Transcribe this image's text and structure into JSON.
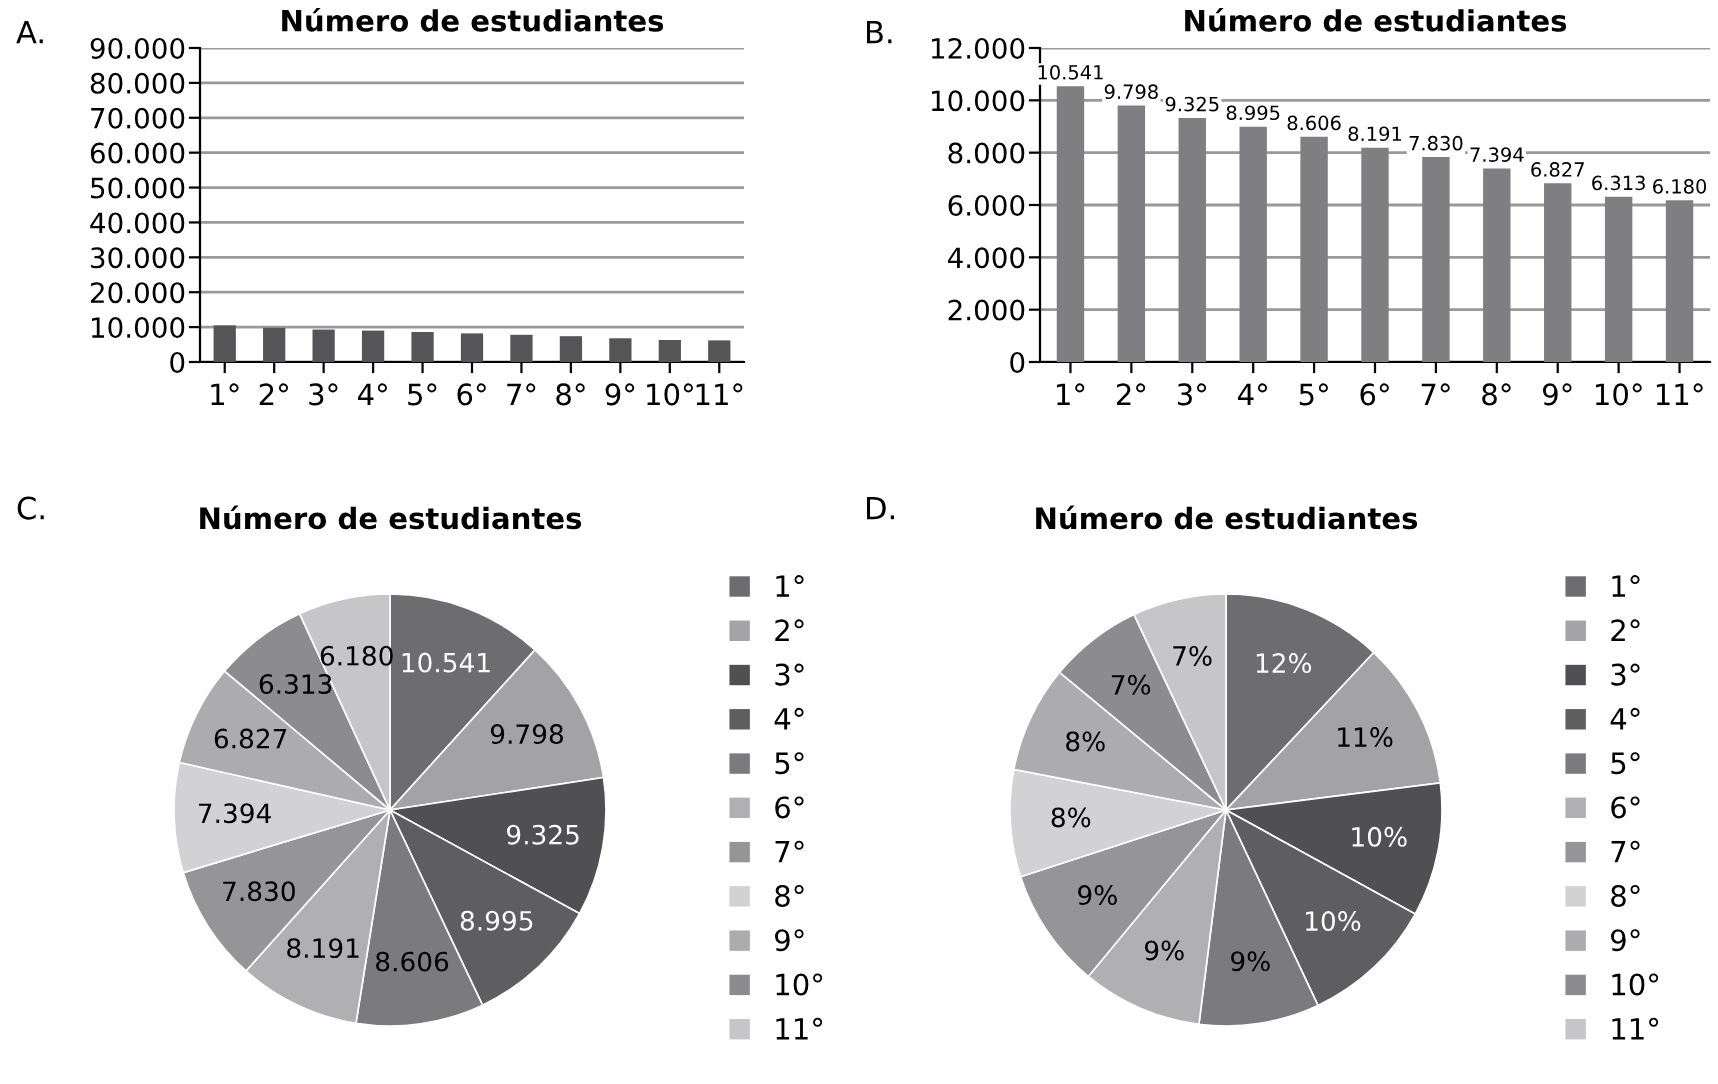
{
  "chart_data": [
    {
      "type": "bar",
      "title": "Número de estudiantes",
      "annotations": [
        "A."
      ],
      "categories": [
        "1°",
        "2°",
        "3°",
        "4°",
        "5°",
        "6°",
        "7°",
        "8°",
        "9°",
        "10°",
        "11°"
      ],
      "values": [
        10500,
        9800,
        9300,
        9000,
        8600,
        8200,
        7800,
        7400,
        6800,
        6300,
        6200
      ],
      "color": "#555558",
      "ylim": [
        0,
        90000
      ],
      "yticks": [
        0,
        {
          "value": 10000,
          "label": "10.000"
        },
        {
          "value": 20000,
          "label": "20.000"
        },
        {
          "value": 30000,
          "label": "30.000"
        },
        {
          "value": 40000,
          "label": "40.000"
        },
        {
          "value": 50000,
          "label": "50.000"
        },
        {
          "value": 60000,
          "label": "60.000"
        },
        {
          "value": 70000,
          "label": "70.000"
        },
        {
          "value": 80000,
          "label": "80.000"
        },
        {
          "value": 90000,
          "label": "90.000"
        }
      ],
      "grid": "y"
    },
    {
      "type": "bar",
      "title": "Número de estudiantes",
      "annotations": [
        "B."
      ],
      "categories": [
        "1°",
        "2°",
        "3°",
        "4°",
        "5°",
        "6°",
        "7°",
        "8°",
        "9°",
        "10°",
        "11°"
      ],
      "values": [
        10541,
        9798,
        9325,
        8995,
        8606,
        8191,
        7830,
        7394,
        6827,
        6313,
        6180
      ],
      "color": "#7f7f81",
      "value_labels": [
        "10.541",
        "9.798",
        "9.325",
        "8.995",
        "8.606",
        "8.191",
        "7.830",
        "7.394",
        "6.827",
        "6.313",
        "6.180"
      ],
      "ylim": [
        0,
        12000
      ],
      "yticks": [
        0,
        {
          "value": 2000,
          "label": "2.000"
        },
        {
          "value": 4000,
          "label": "4.000"
        },
        {
          "value": 6000,
          "label": "6.000"
        },
        {
          "value": 8000,
          "label": "8.000"
        },
        {
          "value": 10000,
          "label": "10.000"
        },
        {
          "value": 12000,
          "label": "12.000"
        }
      ],
      "grid": "y"
    },
    {
      "type": "pie",
      "title": "Número de estudiantes",
      "annotations": [
        "C."
      ],
      "categories": [
        "1°",
        "2°",
        "3°",
        "4°",
        "5°",
        "6°",
        "7°",
        "8°",
        "9°",
        "10°",
        "11°"
      ],
      "values": [
        10541,
        9798,
        9325,
        8995,
        8606,
        8191,
        7830,
        7394,
        6827,
        6313,
        6180
      ],
      "colors": [
        "#6d6d6f",
        "#a3a3a5",
        "#505053",
        "#5e5e61",
        "#7b7b7e",
        "#b0b0b2",
        "#959597",
        "#d2d2d4",
        "#acacae",
        "#8c8c8e",
        "#c6c6c8"
      ],
      "value_labels": [
        "10.541",
        "9.798",
        "9.325",
        "8.995",
        "8.606",
        "8.191",
        "7.830",
        "7.394",
        "6.827",
        "6.313",
        "6.180"
      ],
      "legend": "right"
    },
    {
      "type": "pie",
      "title": "Número de estudiantes",
      "annotations": [
        "D."
      ],
      "categories": [
        "1°",
        "2°",
        "3°",
        "4°",
        "5°",
        "6°",
        "7°",
        "8°",
        "9°",
        "10°",
        "11°"
      ],
      "values": [
        12,
        11,
        10,
        10,
        9,
        9,
        9,
        8,
        8,
        7,
        7
      ],
      "colors": [
        "#6d6d6f",
        "#a3a3a5",
        "#505053",
        "#5e5e61",
        "#7b7b7e",
        "#b0b0b2",
        "#959597",
        "#d2d2d4",
        "#acacae",
        "#8c8c8e",
        "#c6c6c8"
      ],
      "value_labels": [
        "12%",
        "11%",
        "10%",
        "10%",
        "9%",
        "9%",
        "9%",
        "8%",
        "8%",
        "7%",
        "7%"
      ],
      "legend": "right"
    }
  ]
}
